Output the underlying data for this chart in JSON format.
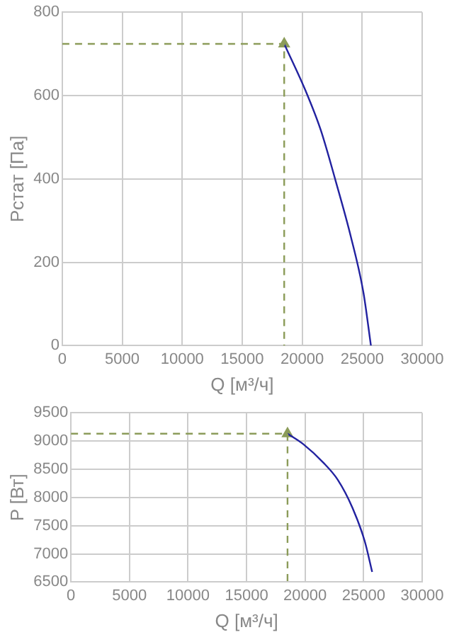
{
  "chart_data": [
    {
      "type": "line",
      "xlabel": "Q [м³/ч]",
      "ylabel": "Рстат [Па]",
      "xlim": [
        0,
        30000
      ],
      "xticks": [
        0,
        5000,
        10000,
        15000,
        20000,
        25000,
        30000
      ],
      "ylim": [
        0,
        800
      ],
      "yticks": [
        0,
        200,
        400,
        600,
        800
      ],
      "grid": true,
      "legend": false,
      "series": [
        {
          "type": "line",
          "color": "#8c9c5a",
          "line_style": "dashed",
          "marker": "none",
          "x": [
            0,
            18500,
            18500
          ],
          "values": [
            724,
            724,
            0
          ]
        },
        {
          "type": "line",
          "color": "#2222a0",
          "line_style": "solid",
          "marker": "none",
          "x": [
            18500,
            20290,
            21550,
            22800,
            24060,
            25100,
            25730
          ],
          "values": [
            724,
            611,
            517,
            394,
            261,
            128,
            0
          ]
        },
        {
          "type": "scatter",
          "color": "#8c9c5a",
          "marker": "triangle",
          "x": [
            18500
          ],
          "values": [
            724
          ]
        }
      ]
    },
    {
      "type": "line",
      "xlabel": "Q [м³/ч]",
      "ylabel": "P [Вт]",
      "xlim": [
        0,
        30000
      ],
      "xticks": [
        0,
        5000,
        10000,
        15000,
        20000,
        25000,
        30000
      ],
      "ylim": [
        6500,
        9500
      ],
      "yticks": [
        6500,
        7000,
        7500,
        8000,
        8500,
        9000,
        9500
      ],
      "grid": true,
      "legend": false,
      "series": [
        {
          "type": "line",
          "color": "#8c9c5a",
          "line_style": "dashed",
          "marker": "none",
          "x": [
            0,
            18500,
            18500
          ],
          "values": [
            9130,
            9130,
            6500
          ]
        },
        {
          "type": "line",
          "color": "#2222a0",
          "line_style": "solid",
          "marker": "none",
          "x": [
            18500,
            19870,
            21540,
            22800,
            24060,
            25100,
            25730
          ],
          "values": [
            9130,
            8940,
            8620,
            8310,
            7810,
            7220,
            6680
          ]
        },
        {
          "type": "scatter",
          "color": "#8c9c5a",
          "marker": "triangle",
          "x": [
            18500
          ],
          "values": [
            9130
          ]
        }
      ]
    }
  ]
}
